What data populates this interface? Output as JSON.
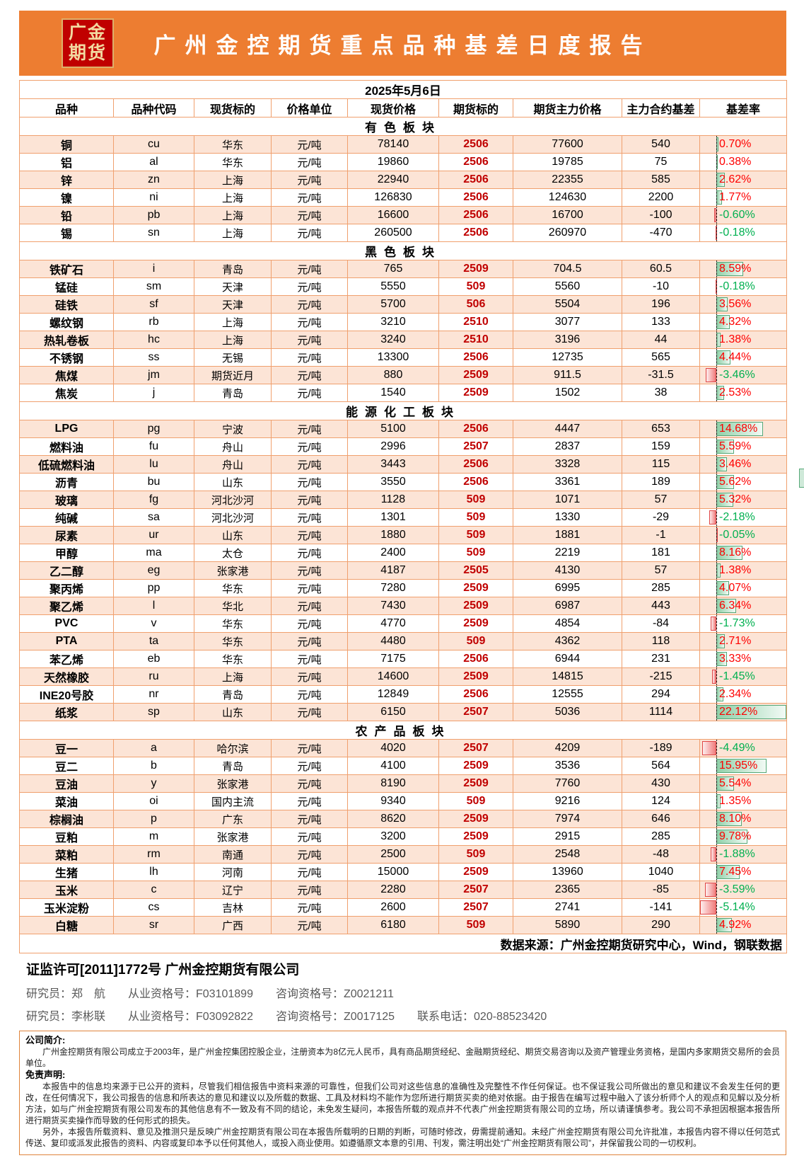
{
  "brand": {
    "logo_top": "广金",
    "logo_bottom": "期货"
  },
  "title": "广州金控期货重点品种基差日度报告",
  "report_date": "2025年5月6日",
  "columns": [
    "品种",
    "品种代码",
    "现货标的",
    "价格单位",
    "现货价格",
    "期货标的",
    "期货主力价格",
    "主力合约基差",
    "基差率"
  ],
  "row_fields": [
    "variety",
    "code",
    "spot_target",
    "price_unit",
    "spot_price",
    "futures_contract",
    "futures_main_price",
    "main_contract_basis",
    "basis_rate"
  ],
  "sections": [
    {
      "name": "有色板块",
      "rows": [
        [
          "铜",
          "cu",
          "华东",
          "元/吨",
          "78140",
          "2506",
          "77600",
          "540",
          "0.70%"
        ],
        [
          "铝",
          "al",
          "华东",
          "元/吨",
          "19860",
          "2506",
          "19785",
          "75",
          "0.38%"
        ],
        [
          "锌",
          "zn",
          "上海",
          "元/吨",
          "22940",
          "2506",
          "22355",
          "585",
          "2.62%"
        ],
        [
          "镍",
          "ni",
          "上海",
          "元/吨",
          "126830",
          "2506",
          "124630",
          "2200",
          "1.77%"
        ],
        [
          "铅",
          "pb",
          "上海",
          "元/吨",
          "16600",
          "2506",
          "16700",
          "-100",
          "-0.60%"
        ],
        [
          "锡",
          "sn",
          "上海",
          "元/吨",
          "260500",
          "2506",
          "260970",
          "-470",
          "-0.18%"
        ]
      ]
    },
    {
      "name": "黑色板块",
      "rows": [
        [
          "铁矿石",
          "i",
          "青岛",
          "元/吨",
          "765",
          "2509",
          "704.5",
          "60.5",
          "8.59%"
        ],
        [
          "锰硅",
          "sm",
          "天津",
          "元/吨",
          "5550",
          "509",
          "5560",
          "-10",
          "-0.18%"
        ],
        [
          "硅铁",
          "sf",
          "天津",
          "元/吨",
          "5700",
          "506",
          "5504",
          "196",
          "3.56%"
        ],
        [
          "螺纹钢",
          "rb",
          "上海",
          "元/吨",
          "3210",
          "2510",
          "3077",
          "133",
          "4.32%"
        ],
        [
          "热轧卷板",
          "hc",
          "上海",
          "元/吨",
          "3240",
          "2510",
          "3196",
          "44",
          "1.38%"
        ],
        [
          "不锈钢",
          "ss",
          "无锡",
          "元/吨",
          "13300",
          "2506",
          "12735",
          "565",
          "4.44%"
        ],
        [
          "焦煤",
          "jm",
          "期货近月",
          "元/吨",
          "880",
          "2509",
          "911.5",
          "-31.5",
          "-3.46%"
        ],
        [
          "焦炭",
          "j",
          "青岛",
          "元/吨",
          "1540",
          "2509",
          "1502",
          "38",
          "2.53%"
        ]
      ]
    },
    {
      "name": "能源化工板块",
      "rows": [
        [
          "LPG",
          "pg",
          "宁波",
          "元/吨",
          "5100",
          "2506",
          "4447",
          "653",
          "14.68%"
        ],
        [
          "燃料油",
          "fu",
          "舟山",
          "元/吨",
          "2996",
          "2507",
          "2837",
          "159",
          "5.59%"
        ],
        [
          "低硫燃料油",
          "lu",
          "舟山",
          "元/吨",
          "3443",
          "2506",
          "3328",
          "115",
          "3.46%"
        ],
        [
          "沥青",
          "bu",
          "山东",
          "元/吨",
          "3550",
          "2506",
          "3361",
          "189",
          "5.62%"
        ],
        [
          "玻璃",
          "fg",
          "河北沙河",
          "元/吨",
          "1128",
          "509",
          "1071",
          "57",
          "5.32%"
        ],
        [
          "纯碱",
          "sa",
          "河北沙河",
          "元/吨",
          "1301",
          "509",
          "1330",
          "-29",
          "-2.18%"
        ],
        [
          "尿素",
          "ur",
          "山东",
          "元/吨",
          "1880",
          "509",
          "1881",
          "-1",
          "-0.05%"
        ],
        [
          "甲醇",
          "ma",
          "太仓",
          "元/吨",
          "2400",
          "509",
          "2219",
          "181",
          "8.16%"
        ],
        [
          "乙二醇",
          "eg",
          "张家港",
          "元/吨",
          "4187",
          "2505",
          "4130",
          "57",
          "1.38%"
        ],
        [
          "聚丙烯",
          "pp",
          "华东",
          "元/吨",
          "7280",
          "2509",
          "6995",
          "285",
          "4.07%"
        ],
        [
          "聚乙烯",
          "l",
          "华北",
          "元/吨",
          "7430",
          "2509",
          "6987",
          "443",
          "6.34%"
        ],
        [
          "PVC",
          "v",
          "华东",
          "元/吨",
          "4770",
          "2509",
          "4854",
          "-84",
          "-1.73%"
        ],
        [
          "PTA",
          "ta",
          "华东",
          "元/吨",
          "4480",
          "509",
          "4362",
          "118",
          "2.71%"
        ],
        [
          "苯乙烯",
          "eb",
          "华东",
          "元/吨",
          "7175",
          "2506",
          "6944",
          "231",
          "3.33%"
        ],
        [
          "天然橡胶",
          "ru",
          "上海",
          "元/吨",
          "14600",
          "2509",
          "14815",
          "-215",
          "-1.45%"
        ],
        [
          "INE20号胶",
          "nr",
          "青岛",
          "元/吨",
          "12849",
          "2506",
          "12555",
          "294",
          "2.34%"
        ],
        [
          "纸浆",
          "sp",
          "山东",
          "元/吨",
          "6150",
          "2507",
          "5036",
          "1114",
          "22.12%"
        ]
      ]
    },
    {
      "name": "农产品板块",
      "rows": [
        [
          "豆一",
          "a",
          "哈尔滨",
          "元/吨",
          "4020",
          "2507",
          "4209",
          "-189",
          "-4.49%"
        ],
        [
          "豆二",
          "b",
          "青岛",
          "元/吨",
          "4100",
          "2509",
          "3536",
          "564",
          "15.95%"
        ],
        [
          "豆油",
          "y",
          "张家港",
          "元/吨",
          "8190",
          "2509",
          "7760",
          "430",
          "5.54%"
        ],
        [
          "菜油",
          "oi",
          "国内主流",
          "元/吨",
          "9340",
          "509",
          "9216",
          "124",
          "1.35%"
        ],
        [
          "棕榈油",
          "p",
          "广东",
          "元/吨",
          "8620",
          "2509",
          "7974",
          "646",
          "8.10%"
        ],
        [
          "豆粕",
          "m",
          "张家港",
          "元/吨",
          "3200",
          "2509",
          "2915",
          "285",
          "9.78%"
        ],
        [
          "菜粕",
          "rm",
          "南通",
          "元/吨",
          "2500",
          "509",
          "2548",
          "-48",
          "-1.88%"
        ],
        [
          "生猪",
          "lh",
          "河南",
          "元/吨",
          "15000",
          "2509",
          "13960",
          "1040",
          "7.45%"
        ],
        [
          "玉米",
          "c",
          "辽宁",
          "元/吨",
          "2280",
          "2507",
          "2365",
          "-85",
          "-3.59%"
        ],
        [
          "玉米淀粉",
          "cs",
          "吉林",
          "元/吨",
          "2600",
          "2507",
          "2741",
          "-141",
          "-5.14%"
        ],
        [
          "白糖",
          "sr",
          "广西",
          "元/吨",
          "6180",
          "509",
          "5890",
          "290",
          "4.92%"
        ]
      ]
    }
  ],
  "data_source": "数据来源：广州金控期货研究中心，Wind，钢联数据",
  "license": "证监许可[2011]1772号 广州金控期货有限公司",
  "researchers": [
    "研究员：郑　航　　从业资格号：F03101899　　咨询资格号：Z0021211",
    "研究员：李彬联　　从业资格号：F03092822　　咨询资格号：Z0017125　　联系电话：020-88523420"
  ],
  "company_profile": {
    "heading": "公司简介:",
    "text": "广州金控期货有限公司成立于2003年，是广州金控集团控股企业，注册资本为8亿元人民币，具有商品期货经纪、金融期货经纪、期货交易咨询以及资产管理业务资格，是国内多家期货交易所的会员单位。"
  },
  "disclaimer": {
    "heading": "免责声明:",
    "paragraphs": [
      "本报告中的信息均来源于已公开的资料，尽管我们相信报告中资料来源的可靠性，但我们公司对这些信息的准确性及完整性不作任何保证。也不保证我公司所做出的意见和建议不会发生任何的更改，在任何情况下，我公司报告的信息和所表达的意见和建议以及所载的数据、工具及材料均不能作为您所进行期货买卖的绝对依据。由于报告在编写过程中融入了该分析师个人的观点和见解以及分析方法，如与广州金控期货有限公司发布的其他信息有不一致及有不同的结论，未免发生疑问，本报告所载的观点并不代表广州金控期货有限公司的立场，所以请谨慎参考。我公司不承担因根据本报告所进行期货买卖操作而导致的任何形式的损失。",
      "另外，本报告所载资料、意见及推测只是反映广州金控期货有限公司在本报告所载明的日期的判断，可随时修改，毋需提前通知。未经广州金控期货有限公司允许批准，本报告内容不得以任何范式传送、复印或派发此报告的资料、内容或复印本予以任何其他人，或投入商业使用。如遵循原文本意的引用、刊发，需注明出处“广州金控期货有限公司”，并保留我公司的一切权利。"
    ]
  },
  "colors": {
    "accent": "#ED7D31",
    "logo_red": "#C00000",
    "logo_gold": "#F2D8A0",
    "logo_gold_border": "#DDB06A",
    "row_peach": "#FCE4D6",
    "grid": "#F0A06E",
    "rate_positive": "#FE0000",
    "rate_negative": "#00B050",
    "contract_red": "#C00000",
    "bar_green": "#8FD0A8",
    "bar_green_border": "#56A878",
    "bar_red": "#F07C7C",
    "bar_red_border": "#E04646",
    "footer_grey": "#595959",
    "box_border": "#E0843C"
  }
}
